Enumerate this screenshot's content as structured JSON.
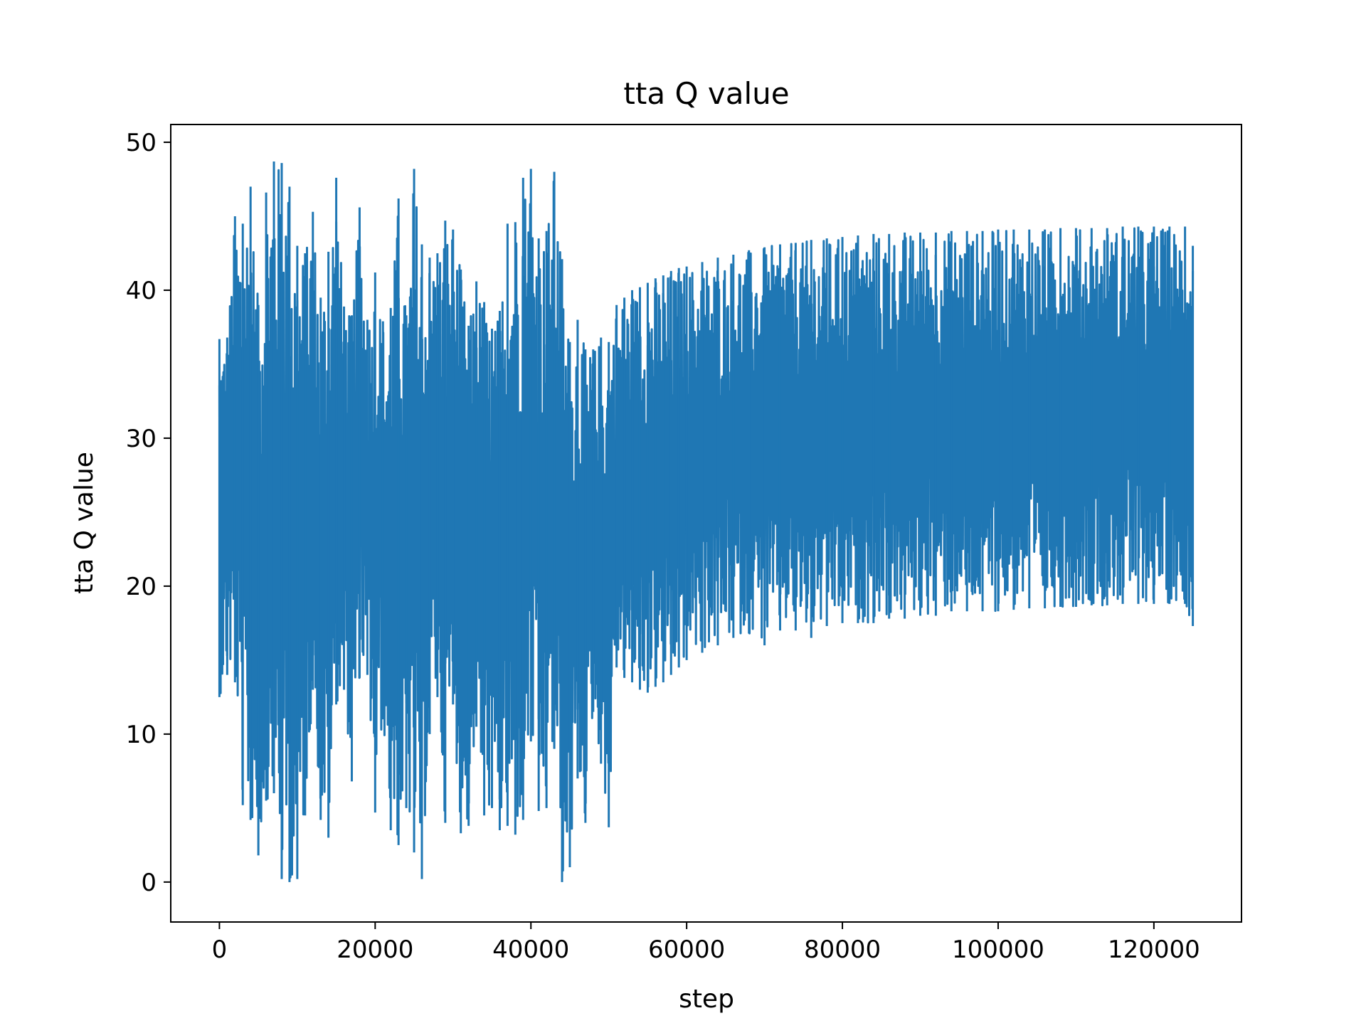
{
  "chart_data": {
    "type": "line",
    "title": "tta Q value",
    "xlabel": "step",
    "ylabel": "tta Q value",
    "xlim": [
      -6250,
      131250
    ],
    "ylim": [
      -2.7,
      51.2
    ],
    "xticks": [
      0,
      20000,
      40000,
      60000,
      80000,
      100000,
      120000
    ],
    "xtick_labels": [
      "0",
      "20000",
      "40000",
      "60000",
      "80000",
      "100000",
      "120000"
    ],
    "yticks": [
      0,
      10,
      20,
      30,
      40,
      50
    ],
    "ytick_labels": [
      "0",
      "10",
      "20",
      "30",
      "40",
      "50"
    ],
    "grid": false,
    "legend": "none",
    "series_color": "#1f77b4",
    "series": [
      {
        "x": [
          0,
          1000,
          2000,
          3000,
          4000,
          5000,
          6000,
          7000,
          8000,
          9000,
          10000,
          11000,
          12000,
          13000,
          14000,
          15000,
          16000,
          17000,
          18000,
          19000,
          20000,
          21000,
          22000,
          23000,
          24000,
          25000,
          26000,
          27000,
          28000,
          29000,
          30000,
          31000,
          32000,
          33000,
          34000,
          35000,
          36000,
          37000,
          38000,
          39000,
          40000,
          41000,
          42000,
          43000,
          44000,
          45000,
          46000,
          47000,
          48000,
          49000,
          50000,
          51000,
          52000,
          53000,
          54000,
          55000,
          56000,
          57000,
          58000,
          59000,
          60000,
          62000,
          64000,
          66000,
          68000,
          70000,
          72000,
          74000,
          76000,
          78000,
          80000,
          82000,
          84000,
          86000,
          88000,
          90000,
          92000,
          94000,
          96000,
          98000,
          100000,
          102000,
          104000,
          106000,
          108000,
          110000,
          112000,
          114000,
          116000,
          118000,
          120000,
          122000,
          124000,
          125000
        ],
        "y_max": [
          36.7,
          36.8,
          45.0,
          44.5,
          47.0,
          39.0,
          46.6,
          48.7,
          48.6,
          47.0,
          43.0,
          42.5,
          45.3,
          39.5,
          42.6,
          47.6,
          38.9,
          38.3,
          45.6,
          38.0,
          41.2,
          37.9,
          38.8,
          46.2,
          38.3,
          48.2,
          43.1,
          42.2,
          42.5,
          44.7,
          44.1,
          41.4,
          37.6,
          40.6,
          39.2,
          37.4,
          38.6,
          44.5,
          44.6,
          47.6,
          48.2,
          43.5,
          44.0,
          48.0,
          42.1,
          36.5,
          38.0,
          36.0,
          36.0,
          36.8,
          36.5,
          39.0,
          39.5,
          40.0,
          40.2,
          40.5,
          40.8,
          41.0,
          41.3,
          41.5,
          41.6,
          41.9,
          42.2,
          42.4,
          42.7,
          42.9,
          43.1,
          43.2,
          43.4,
          43.5,
          43.6,
          43.7,
          43.8,
          43.8,
          43.9,
          43.9,
          43.9,
          44.0,
          44.0,
          44.0,
          44.1,
          44.1,
          44.1,
          44.1,
          44.2,
          44.2,
          44.2,
          44.2,
          44.3,
          44.3,
          44.3,
          44.3,
          44.3,
          43.0
        ],
        "y_min": [
          12.5,
          14.0,
          13.5,
          5.2,
          4.2,
          1.8,
          5.5,
          6.0,
          0.2,
          0.0,
          0.2,
          4.5,
          13.0,
          4.2,
          3.0,
          12.0,
          13.0,
          6.8,
          13.8,
          14.0,
          4.7,
          11.0,
          3.5,
          2.5,
          5.0,
          2.0,
          0.2,
          10.0,
          12.5,
          4.0,
          12.0,
          3.3,
          3.8,
          10.5,
          4.5,
          5.0,
          3.5,
          3.8,
          3.2,
          4.2,
          9.5,
          4.8,
          5.0,
          9.0,
          0.0,
          1.0,
          7.0,
          4.0,
          11.5,
          8.0,
          3.7,
          14.5,
          13.8,
          13.5,
          13.0,
          12.8,
          13.2,
          13.5,
          14.0,
          14.5,
          15.0,
          15.5,
          16.0,
          16.5,
          16.8,
          16.0,
          17.0,
          17.0,
          16.5,
          17.3,
          17.5,
          17.5,
          17.5,
          17.8,
          17.8,
          18.0,
          18.0,
          18.3,
          18.3,
          18.3,
          18.3,
          18.4,
          18.5,
          18.5,
          18.6,
          18.6,
          18.7,
          18.7,
          18.8,
          18.8,
          18.8,
          18.8,
          18.8,
          17.3
        ]
      }
    ]
  }
}
